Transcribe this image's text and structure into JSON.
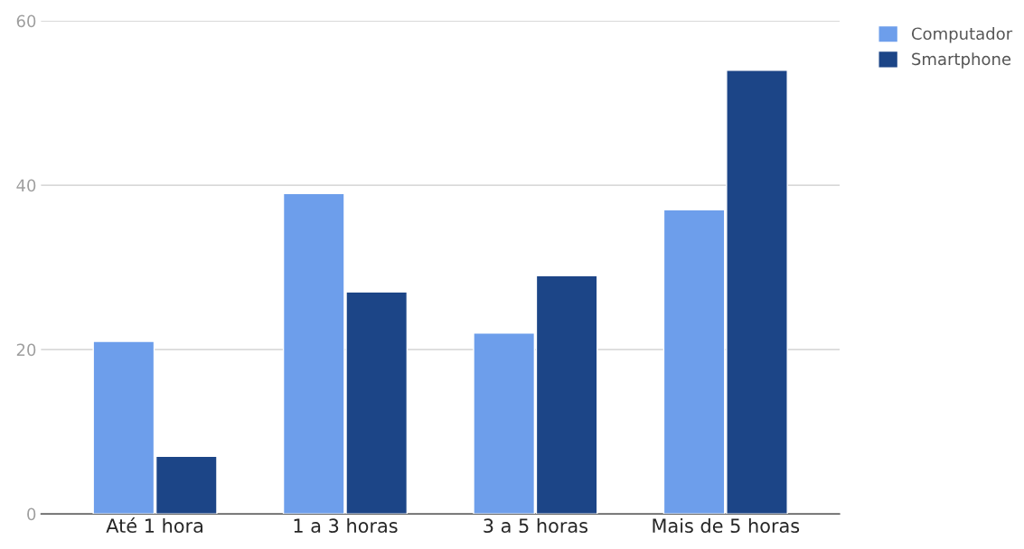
{
  "chart_data": {
    "type": "bar",
    "categories": [
      "Até 1 hora",
      "1 a 3 horas",
      "3 a 5 horas",
      "Mais de 5 horas"
    ],
    "series": [
      {
        "name": "Computador",
        "color": "#6d9eeb",
        "values": [
          21,
          39,
          22,
          37
        ]
      },
      {
        "name": "Smartphone",
        "color": "#1c4587",
        "values": [
          7,
          27,
          29,
          54
        ]
      }
    ],
    "ylim": [
      0,
      60
    ],
    "yticks": [
      0,
      20,
      40,
      60
    ],
    "grid": "y",
    "legend": "top right"
  }
}
